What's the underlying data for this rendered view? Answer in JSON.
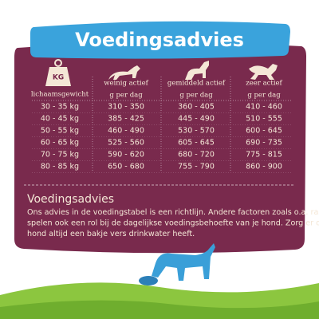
{
  "header": {
    "title": "Voedingsadvies"
  },
  "table": {
    "icon_label": "KG",
    "headers": [
      "lichaamsgewicht",
      "weinig actief",
      "gemiddeld actief",
      "zeer actief"
    ],
    "units": [
      "g per dag",
      "g per dag",
      "g per dag"
    ],
    "rows": [
      [
        "30 - 35 kg",
        "310 - 350",
        "360 - 405",
        "410 - 460"
      ],
      [
        "40 - 45 kg",
        "385 - 425",
        "445 - 490",
        "510 - 555"
      ],
      [
        "50 - 55 kg",
        "460 - 490",
        "530 - 570",
        "600 - 645"
      ],
      [
        "60 - 65 kg",
        "525 - 560",
        "605 - 645",
        "690 - 735"
      ],
      [
        "70 - 75 kg",
        "590 - 620",
        "680 - 720",
        "775 - 815"
      ],
      [
        "80 - 85 kg",
        "650 - 680",
        "755 - 790",
        "860 - 900"
      ]
    ]
  },
  "note": {
    "title": "Voedingsadvies",
    "lines": [
      "Ons advies in de voedingstabel is een richtlijn. Andere factoren zoals o.a. ras en geslacht",
      "spelen ook een rol bij de dagelijkse voedingsbehoefte van je hond. Zorg er ook voor dat je",
      "hond altijd een bakje vers drinkwater heeft."
    ]
  }
}
